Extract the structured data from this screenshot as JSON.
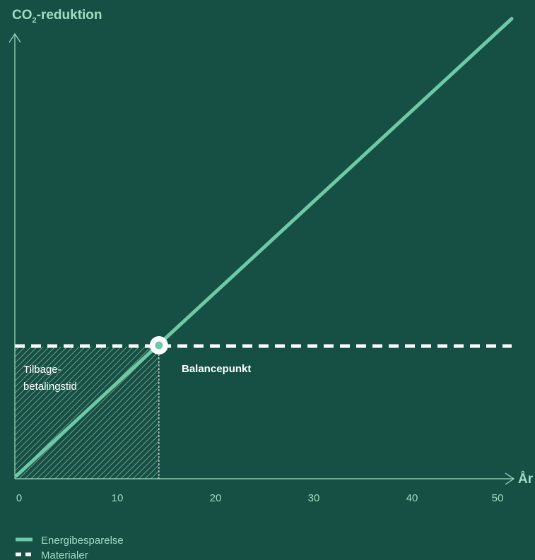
{
  "chart_data": {
    "type": "line",
    "y_label": {
      "main": "CO",
      "subscript": "2",
      "rest": "-reduktion"
    },
    "x_label": "År",
    "x_ticks": [
      "0",
      "10",
      "20",
      "30",
      "40",
      "50"
    ],
    "xlim": [
      0,
      50
    ],
    "series": [
      {
        "name": "Energibesparelse",
        "style": "solid",
        "x": [
          0,
          50
        ],
        "y": [
          0,
          3.5
        ]
      },
      {
        "name": "Materialer",
        "style": "dashed",
        "x": [
          0,
          50
        ],
        "y": [
          1,
          1
        ]
      }
    ],
    "balance_point": {
      "x": 14.5,
      "y": 1,
      "label": "Balancepunkt"
    },
    "payback_region": {
      "x": [
        0,
        14.5
      ],
      "label_line1": "Tilbage-",
      "label_line2": "betalingstid"
    }
  },
  "legend": [
    {
      "label": "Energibesparelse",
      "style": "solid"
    },
    {
      "label": "Materialer",
      "style": "dashed"
    }
  ],
  "colors": {
    "background": "#164f43",
    "accent": "#6ec9a8",
    "text": "#9fdcc4",
    "white": "#ffffff"
  }
}
